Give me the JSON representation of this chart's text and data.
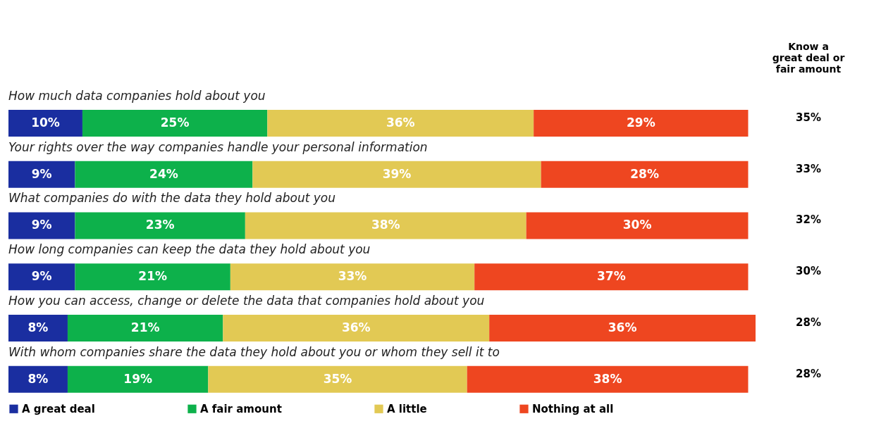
{
  "chart_data": {
    "type": "bar",
    "orientation": "horizontal",
    "stacked": true,
    "categories": [
      "How much data companies hold about you",
      "Your rights over the way companies handle your personal information",
      "What companies do with the data they hold about you",
      "How long companies can keep the data they hold about you",
      "How you can access, change or delete the data that companies hold about you",
      "With whom companies share the data they hold about you or whom they sell it to"
    ],
    "series": [
      {
        "name": "A great deal",
        "color": "#1a2ea0",
        "values": [
          10,
          9,
          9,
          9,
          8,
          8
        ],
        "value_labels": [
          "10%",
          "9%",
          "9%",
          "9%",
          "8%",
          "8%"
        ]
      },
      {
        "name": "A fair amount",
        "color": "#0db14b",
        "values": [
          25,
          24,
          23,
          21,
          21,
          19
        ],
        "value_labels": [
          "25%",
          "24%",
          "23%",
          "21%",
          "21%",
          "19%"
        ]
      },
      {
        "name": "A little",
        "color": "#e2c954",
        "values": [
          36,
          39,
          38,
          33,
          36,
          35
        ],
        "value_labels": [
          "36%",
          "39%",
          "38%",
          "33%",
          "36%",
          "35%"
        ]
      },
      {
        "name": "Nothing at all",
        "color": "#ee4620",
        "values": [
          29,
          28,
          30,
          37,
          36,
          38
        ],
        "value_labels": [
          "29%",
          "28%",
          "30%",
          "37%",
          "36%",
          "38%"
        ]
      }
    ],
    "xlim": [
      0,
      101
    ],
    "tick_labels": false,
    "annotations": [
      "Know a great deal or fair amount",
      "35%",
      "33%",
      "32%",
      "30%",
      "28%",
      "28%"
    ],
    "legend": "bottom"
  }
}
